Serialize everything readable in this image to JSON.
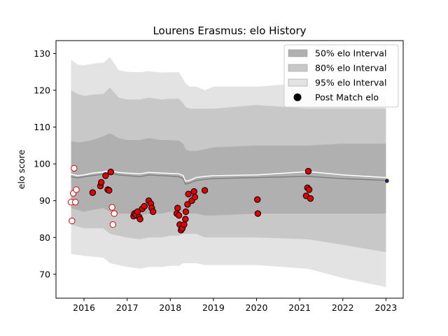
{
  "chart_data": {
    "type": "scatter",
    "title": "Lourens Erasmus: elo History",
    "xlabel": "",
    "ylabel": "elo score",
    "xlim": [
      2015.35,
      2023.4
    ],
    "ylim": [
      63.5,
      133.5
    ],
    "x_ticks": [
      2016,
      2017,
      2018,
      2019,
      2020,
      2021,
      2022,
      2023
    ],
    "y_ticks": [
      70,
      80,
      90,
      100,
      110,
      120,
      130
    ],
    "grid": false,
    "legend_position": "top-right",
    "legend": [
      {
        "label": "50% elo Interval",
        "kind": "patch",
        "color": "#b0b0b0"
      },
      {
        "label": "80% elo Interval",
        "kind": "patch",
        "color": "#c8c8c8"
      },
      {
        "label": "95% elo Interval",
        "kind": "patch",
        "color": "#e3e3e3"
      },
      {
        "label": "Post Match elo",
        "kind": "marker",
        "color": "#000000"
      }
    ],
    "colors": {
      "band95": "#e3e3e3",
      "band80": "#c8c8c8",
      "band50": "#b0b0b0",
      "median_line": "#808080",
      "mean_line": "#ffffff",
      "win_fill": "#e00000",
      "win_edge": "#000000",
      "loss_fill": "#ffffff",
      "loss_edge": "#e00000",
      "current_fill": "#1010c0",
      "current_edge": "#cccc00"
    },
    "band_x": [
      2015.7,
      2015.85,
      2016.0,
      2016.2,
      2016.45,
      2016.6,
      2016.8,
      2017.0,
      2017.3,
      2017.5,
      2017.8,
      2018.0,
      2018.2,
      2018.3,
      2018.35,
      2018.45,
      2018.6,
      2018.8,
      2019.0,
      2020.0,
      2021.2,
      2022.0,
      2023.0
    ],
    "band95_upper": [
      128.3,
      127.0,
      126.8,
      127.2,
      127.5,
      129.0,
      125.5,
      125.0,
      124.9,
      125.2,
      124.8,
      124.9,
      124.9,
      123.0,
      122.0,
      121.0,
      121.0,
      120.0,
      121.0,
      121.0,
      122.0,
      120.0,
      118.0
    ],
    "band95_lower": [
      75.5,
      75.3,
      75.0,
      74.8,
      74.5,
      73.0,
      72.5,
      72.0,
      71.5,
      72.0,
      72.0,
      72.3,
      72.3,
      73.0,
      73.0,
      73.0,
      73.0,
      72.5,
      72.5,
      72.5,
      71.5,
      69.0,
      66.5
    ],
    "band80_upper": [
      120.0,
      119.0,
      118.5,
      118.8,
      119.0,
      120.8,
      118.0,
      117.5,
      117.5,
      118.0,
      117.5,
      117.7,
      117.7,
      116.5,
      115.5,
      115.0,
      115.0,
      115.0,
      115.0,
      116.0,
      115.0,
      115.0,
      115.0
    ],
    "band80_lower": [
      83.5,
      83.0,
      82.5,
      82.5,
      82.5,
      81.0,
      80.5,
      80.0,
      79.5,
      80.0,
      80.0,
      80.5,
      80.5,
      81.0,
      81.0,
      81.0,
      81.0,
      80.0,
      80.0,
      80.0,
      79.5,
      78.0,
      76.0
    ],
    "band50_upper": [
      106.2,
      105.8,
      106.0,
      106.5,
      107.5,
      108.3,
      107.0,
      106.5,
      106.5,
      107.0,
      106.5,
      106.5,
      106.3,
      105.5,
      104.0,
      103.5,
      103.5,
      104.0,
      104.5,
      105.0,
      105.0,
      105.5,
      105.5
    ],
    "band50_lower": [
      88.0,
      87.5,
      87.0,
      87.5,
      88.0,
      87.0,
      86.5,
      86.5,
      86.0,
      86.5,
      86.5,
      87.0,
      87.0,
      87.0,
      87.0,
      86.5,
      86.5,
      86.0,
      86.0,
      86.5,
      86.5,
      86.5,
      86.5
    ],
    "median_line": [
      96.5,
      96.2,
      96.5,
      96.8,
      97.2,
      97.5,
      97.0,
      96.8,
      96.5,
      97.0,
      96.8,
      96.7,
      96.5,
      96.0,
      94.5,
      94.8,
      95.5,
      95.8,
      96.0,
      96.3,
      96.6,
      96.0,
      95.5
    ],
    "mean_line": [
      97.2,
      96.8,
      97.0,
      97.5,
      97.8,
      98.2,
      97.7,
      97.5,
      97.3,
      97.7,
      97.5,
      97.4,
      97.3,
      96.8,
      95.3,
      95.5,
      96.3,
      96.6,
      96.8,
      97.0,
      97.9,
      97.0,
      96.3
    ],
    "wins": {
      "x": [
        2016.2,
        2016.38,
        2016.4,
        2016.5,
        2016.55,
        2016.58,
        2016.62,
        2017.15,
        2017.17,
        2017.2,
        2017.24,
        2017.28,
        2017.3,
        2017.35,
        2017.4,
        2017.5,
        2017.55,
        2017.57,
        2017.6,
        2018.15,
        2018.17,
        2018.2,
        2018.22,
        2018.25,
        2018.28,
        2018.32,
        2018.35,
        2018.36,
        2018.4,
        2018.42,
        2018.5,
        2018.55,
        2018.57,
        2018.8,
        2020.02,
        2020.03,
        2021.15,
        2021.18,
        2021.2,
        2021.22,
        2021.25
      ],
      "y": [
        92.2,
        94.0,
        95.0,
        96.8,
        93.0,
        92.8,
        97.8,
        85.8,
        86.5,
        86.2,
        87.0,
        85.5,
        85.0,
        87.8,
        88.5,
        90.0,
        89.2,
        88.0,
        87.0,
        86.5,
        88.0,
        86.0,
        83.5,
        82.0,
        82.5,
        83.5,
        85.0,
        87.0,
        89.0,
        91.8,
        90.0,
        92.5,
        91.0,
        92.8,
        90.3,
        86.5,
        91.3,
        93.5,
        98.0,
        93.0,
        90.6
      ]
    },
    "losses": {
      "x": [
        2015.7,
        2015.72,
        2015.75,
        2015.77,
        2015.8,
        2015.82,
        2016.62,
        2016.65,
        2016.67,
        2016.7
      ],
      "y": [
        89.6,
        84.5,
        92.0,
        98.8,
        89.6,
        93.0,
        97.8,
        88.2,
        83.5,
        86.5
      ]
    },
    "current": {
      "x": [
        2023.02
      ],
      "y": [
        95.4
      ]
    }
  }
}
